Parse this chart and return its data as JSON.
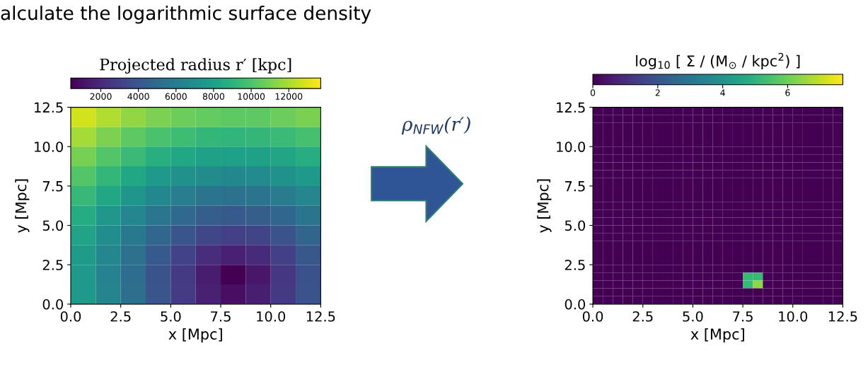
{
  "chart_data": [
    {
      "type": "heatmap",
      "clabel": "Projected radius r′ [kpc]",
      "xlabel": "x [Mpc]",
      "ylabel": "y [Mpc]",
      "annotations": [
        "alculate the logarithmic surface density"
      ],
      "xlim": [
        0,
        12.5
      ],
      "ylim": [
        0,
        12.5
      ],
      "xticks": [
        {
          "value": 0,
          "label": "0.0"
        },
        {
          "value": 2.5,
          "label": "2.5"
        },
        {
          "value": 5,
          "label": "5.0"
        },
        {
          "value": 7.5,
          "label": "7.5"
        },
        {
          "value": 10,
          "label": "10.0"
        },
        {
          "value": 12.5,
          "label": "12.5"
        }
      ],
      "yticks": [
        {
          "value": 0,
          "label": "0.0"
        },
        {
          "value": 2.5,
          "label": "2.5"
        },
        {
          "value": 5,
          "label": "5.0"
        },
        {
          "value": 7.5,
          "label": "7.5"
        },
        {
          "value": 10,
          "label": "10.0"
        },
        {
          "value": 12.5,
          "label": "12.5"
        }
      ],
      "clim": [
        400,
        13700
      ],
      "cticks": [
        2000,
        4000,
        6000,
        8000,
        10000,
        12000
      ],
      "cells": [
        [
          12800,
          12100,
          11500,
          11100,
          10700,
          10500,
          10400,
          10400,
          10700,
          11000
        ],
        [
          11900,
          11100,
          10400,
          9900,
          9500,
          9200,
          9100,
          9200,
          9400,
          9800
        ],
        [
          10900,
          10100,
          9400,
          8800,
          8300,
          8000,
          7900,
          8000,
          8200,
          8700
        ],
        [
          10100,
          9200,
          8300,
          7600,
          7100,
          6800,
          6600,
          6700,
          7100,
          7600
        ],
        [
          9300,
          8300,
          7400,
          6600,
          6000,
          5500,
          5400,
          5500,
          5900,
          6500
        ],
        [
          8600,
          7500,
          6500,
          5600,
          4900,
          4300,
          4100,
          4300,
          4800,
          5500
        ],
        [
          8100,
          6900,
          5800,
          4800,
          3900,
          3200,
          2900,
          3100,
          3800,
          4700
        ],
        [
          7700,
          6500,
          5300,
          4100,
          3000,
          2100,
          1600,
          2000,
          2900,
          4000
        ],
        [
          7600,
          6300,
          5100,
          3800,
          2600,
          1400,
          400,
          1200,
          2500,
          3700
        ],
        [
          7600,
          6400,
          5200,
          3900,
          2700,
          1600,
          900,
          1500,
          2600,
          3800
        ]
      ]
    },
    {
      "type": "heatmap",
      "clabel": "log$_{10}$ [ Σ / (M$_{⊙}$ / kpc$^{2}$) ]",
      "xlabel": "x [Mpc]",
      "ylabel": "y [Mpc]",
      "annotations": [
        "ρ$_{NFW}$(r′)"
      ],
      "xlim": [
        0,
        12.5
      ],
      "ylim": [
        0,
        12.5
      ],
      "xticks": [
        {
          "value": 0,
          "label": "0.0"
        },
        {
          "value": 2.5,
          "label": "2.5"
        },
        {
          "value": 5,
          "label": "5.0"
        },
        {
          "value": 7.5,
          "label": "7.5"
        },
        {
          "value": 10,
          "label": "10.0"
        },
        {
          "value": 12.5,
          "label": "12.5"
        }
      ],
      "yticks": [
        {
          "value": 0,
          "label": "0.0"
        },
        {
          "value": 2.5,
          "label": "2.5"
        },
        {
          "value": 5,
          "label": "5.0"
        },
        {
          "value": 7.5,
          "label": "7.5"
        },
        {
          "value": 10,
          "label": "10.0"
        },
        {
          "value": 12.5,
          "label": "12.5"
        }
      ],
      "clim": [
        0,
        7.7
      ],
      "cticks": [
        0,
        2,
        4,
        6
      ],
      "cells": [
        [
          0,
          0,
          0,
          0,
          0,
          0,
          0,
          0,
          0,
          0,
          0,
          0,
          0,
          0,
          0,
          0,
          0,
          0,
          0,
          0,
          0,
          0,
          0,
          0,
          0
        ],
        [
          0,
          0,
          0,
          0,
          0,
          0,
          0,
          0,
          0,
          0,
          0,
          0,
          0,
          0,
          0,
          0,
          0,
          0,
          0,
          0,
          0,
          0,
          0,
          0,
          0
        ],
        [
          0,
          0,
          0,
          0,
          0,
          0,
          0,
          0,
          0,
          0,
          0,
          0,
          0,
          0,
          0,
          0,
          0,
          0,
          0,
          0,
          0,
          0,
          0,
          0,
          0
        ],
        [
          0,
          0,
          0,
          0,
          0,
          0,
          0,
          0,
          0,
          0,
          0,
          0,
          0,
          0,
          0,
          0,
          0,
          0,
          0,
          0,
          0,
          0,
          0,
          0,
          0
        ],
        [
          0,
          0,
          0,
          0,
          0,
          0,
          0,
          0,
          0,
          0,
          0,
          0,
          0,
          0,
          0,
          0,
          0,
          0,
          0,
          0,
          0,
          0,
          0,
          0,
          0
        ],
        [
          0,
          0,
          0,
          0,
          0,
          0,
          0,
          0,
          0,
          0,
          0,
          0,
          0,
          0,
          0,
          0,
          0,
          0,
          0,
          0,
          0,
          0,
          0,
          0,
          0
        ],
        [
          0,
          0,
          0,
          0,
          0,
          0,
          0,
          0,
          0,
          0,
          0,
          0,
          0,
          0,
          0,
          0,
          0,
          0,
          0,
          0,
          0,
          0,
          0,
          0,
          0
        ],
        [
          0,
          0,
          0,
          0,
          0,
          0,
          0,
          0,
          0,
          0,
          0,
          0,
          0,
          0,
          0,
          0,
          0,
          0,
          0,
          0,
          0,
          0,
          0,
          0,
          0
        ],
        [
          0,
          0,
          0,
          0,
          0,
          0,
          0,
          0,
          0,
          0,
          0,
          0,
          0,
          0,
          0,
          0,
          0,
          0,
          0,
          0,
          0,
          0,
          0,
          0,
          0
        ],
        [
          0,
          0,
          0,
          0,
          0,
          0,
          0,
          0,
          0,
          0,
          0,
          0,
          0,
          0,
          0,
          0,
          0,
          0,
          0,
          0,
          0,
          0,
          0,
          0,
          0
        ],
        [
          0,
          0,
          0,
          0,
          0,
          0,
          0,
          0,
          0,
          0,
          0,
          0,
          0,
          0,
          0,
          0,
          0,
          0,
          0,
          0,
          0,
          0,
          0,
          0,
          0
        ],
        [
          0,
          0,
          0,
          0,
          0,
          0,
          0,
          0,
          0,
          0,
          0,
          0,
          0,
          0,
          0,
          0,
          0,
          0,
          0,
          0,
          0,
          0,
          0,
          0,
          0
        ],
        [
          0,
          0,
          0,
          0,
          0,
          0,
          0,
          0,
          0,
          0,
          0,
          0,
          0,
          0,
          0,
          0,
          0,
          0,
          0,
          0,
          0,
          0,
          0,
          0,
          0
        ],
        [
          0,
          0,
          0,
          0,
          0,
          0,
          0,
          0,
          0,
          0,
          0,
          0,
          0,
          0,
          0,
          0,
          0,
          0,
          0,
          0,
          0,
          0,
          0,
          0,
          0
        ],
        [
          0,
          0,
          0,
          0,
          0,
          0,
          0,
          0,
          0,
          0,
          0,
          0,
          0,
          0,
          0,
          0,
          0,
          0,
          0,
          0,
          0,
          0,
          0,
          0,
          0
        ],
        [
          0,
          0,
          0,
          0,
          0,
          0,
          0,
          0,
          0,
          0,
          0,
          0,
          0,
          0,
          0,
          0,
          0,
          0,
          0,
          0,
          0,
          0,
          0,
          0,
          0
        ],
        [
          0,
          0,
          0,
          0,
          0,
          0,
          0,
          0,
          0,
          0,
          0,
          0,
          0,
          0,
          0,
          0,
          0,
          0,
          0,
          0,
          0,
          0,
          0,
          0,
          0
        ],
        [
          0,
          0,
          0,
          0,
          0,
          0,
          0,
          0,
          0,
          0,
          0,
          0,
          0,
          0,
          0,
          0,
          0,
          0,
          0,
          0,
          0,
          0,
          0,
          0,
          0
        ],
        [
          0,
          0,
          0,
          0,
          0,
          0,
          0,
          0,
          0,
          0,
          0,
          0,
          0,
          0,
          0,
          0,
          0,
          0,
          0,
          0,
          0,
          0,
          0,
          0,
          0
        ],
        [
          0,
          0,
          0,
          0,
          0,
          0,
          0,
          0,
          0,
          0,
          0,
          0,
          0,
          0,
          0,
          0,
          0,
          0,
          0,
          0,
          0,
          0,
          0,
          0,
          0
        ],
        [
          0,
          0,
          0,
          0,
          0,
          0,
          0,
          0,
          0,
          0,
          0,
          0,
          0,
          0,
          0,
          0,
          0,
          0,
          0,
          0,
          0,
          0,
          0,
          0,
          0
        ],
        [
          0,
          0,
          0,
          0,
          0,
          0,
          0,
          0,
          0,
          0,
          0,
          0,
          0,
          0,
          0,
          5.2,
          5.2,
          0,
          0,
          0,
          0,
          0,
          0,
          0,
          0
        ],
        [
          0,
          0,
          0,
          0,
          0,
          0,
          0,
          0,
          0,
          0,
          0,
          0,
          0,
          0,
          0,
          5.2,
          6.4,
          0,
          0,
          0,
          0,
          0,
          0,
          0,
          0
        ],
        [
          0,
          0,
          0,
          0,
          0,
          0,
          0,
          0,
          0,
          0,
          0,
          0,
          0,
          0,
          0,
          0,
          0,
          0,
          0,
          0,
          0,
          0,
          0,
          0,
          0
        ],
        [
          0,
          0,
          0,
          0,
          0,
          0,
          0,
          0,
          0,
          0,
          0,
          0,
          0,
          0,
          0,
          0,
          0,
          0,
          0,
          0,
          0,
          0,
          0,
          0,
          0
        ]
      ]
    }
  ]
}
